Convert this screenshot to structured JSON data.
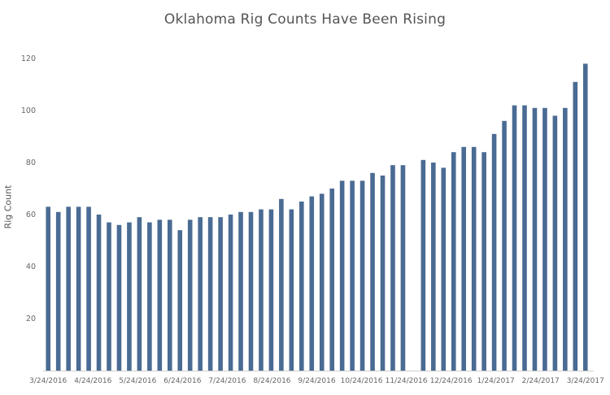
{
  "chart_data": {
    "type": "bar",
    "title": "Oklahoma Rig Counts Have Been Rising",
    "xlabel": "",
    "ylabel": "Rig Count",
    "ylim": [
      0,
      120
    ],
    "yticks": [
      20,
      40,
      60,
      80,
      100,
      120
    ],
    "grid": false,
    "legend": "none",
    "bar_color": "#4a6b93",
    "x_tick_labels": [
      "3/24/2016",
      "4/24/2016",
      "5/24/2016",
      "6/24/2016",
      "7/24/2016",
      "8/24/2016",
      "9/24/2016",
      "10/24/2016",
      "11/24/2016",
      "12/24/2016",
      "1/24/2017",
      "2/24/2017",
      "3/24/2017"
    ],
    "values": [
      63,
      61,
      63,
      63,
      63,
      60,
      57,
      56,
      57,
      59,
      57,
      58,
      58,
      54,
      58,
      59,
      59,
      59,
      60,
      61,
      61,
      62,
      62,
      66,
      62,
      65,
      67,
      68,
      70,
      73,
      73,
      73,
      76,
      75,
      79,
      79,
      0,
      81,
      80,
      78,
      84,
      86,
      86,
      84,
      91,
      96,
      102,
      102,
      101,
      101,
      98,
      101,
      111,
      118
    ]
  }
}
